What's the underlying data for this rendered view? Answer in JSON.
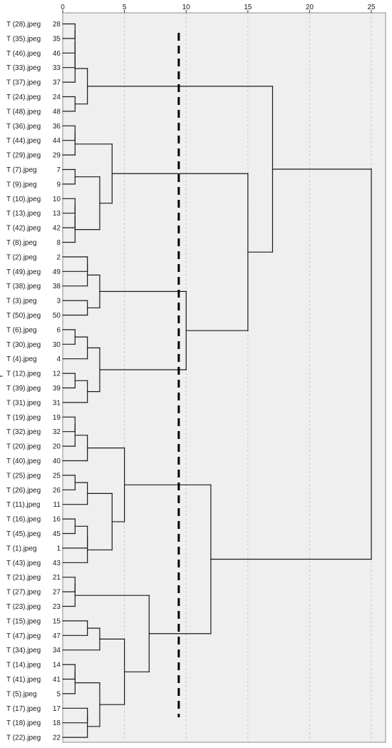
{
  "chart_data": {
    "type": "dendrogram",
    "orientation": "horizontal",
    "xlabel": "",
    "ylabel": "Y",
    "x_ticks": [
      0,
      5,
      10,
      15,
      20,
      25
    ],
    "xlim": [
      0,
      25
    ],
    "grid": "vertical dashed",
    "cut_line_x": 9.4,
    "colors": {
      "plot_background": "#efefef",
      "grid": "#c8c8c8",
      "lines": "#1a1a1a",
      "cut_line": "#000000"
    },
    "leaves": [
      {
        "case": "T (28).jpeg",
        "id": "28"
      },
      {
        "case": "T (35).jpeg",
        "id": "35"
      },
      {
        "case": "T (46).jpeg",
        "id": "46"
      },
      {
        "case": "T (33).jpeg",
        "id": "33"
      },
      {
        "case": "T (37).jpeg",
        "id": "37"
      },
      {
        "case": "T (24).jpeg",
        "id": "24"
      },
      {
        "case": "T (48).jpeg",
        "id": "48"
      },
      {
        "case": "T (36).jpeg",
        "id": "36"
      },
      {
        "case": "T (44).jpeg",
        "id": "44"
      },
      {
        "case": "T (29).jpeg",
        "id": "29"
      },
      {
        "case": "T (7).jpeg",
        "id": "7"
      },
      {
        "case": "T (9).jpeg",
        "id": "9"
      },
      {
        "case": "T (10).jpeg",
        "id": "10"
      },
      {
        "case": "T (13).jpeg",
        "id": "13"
      },
      {
        "case": "T (42).jpeg",
        "id": "42"
      },
      {
        "case": "T (8).jpeg",
        "id": "8"
      },
      {
        "case": "T (2).jpeg",
        "id": "2"
      },
      {
        "case": "T (49).jpeg",
        "id": "49"
      },
      {
        "case": "T (38).jpeg",
        "id": "38"
      },
      {
        "case": "T (3).jpeg",
        "id": "3"
      },
      {
        "case": "T (50).jpeg",
        "id": "50"
      },
      {
        "case": "T (6).jpeg",
        "id": "6"
      },
      {
        "case": "T (30).jpeg",
        "id": "30"
      },
      {
        "case": "T (4).jpeg",
        "id": "4"
      },
      {
        "case": "T (12).jpeg",
        "id": "12"
      },
      {
        "case": "T (39).jpeg",
        "id": "39"
      },
      {
        "case": "T (31).jpeg",
        "id": "31"
      },
      {
        "case": "T (19).jpeg",
        "id": "19"
      },
      {
        "case": "T (32).jpeg",
        "id": "32"
      },
      {
        "case": "T (20).jpeg",
        "id": "20"
      },
      {
        "case": "T (40).jpeg",
        "id": "40"
      },
      {
        "case": "T (25).jpeg",
        "id": "25"
      },
      {
        "case": "T (26).jpeg",
        "id": "26"
      },
      {
        "case": "T (11).jpeg",
        "id": "11"
      },
      {
        "case": "T (16).jpeg",
        "id": "16"
      },
      {
        "case": "T (45).jpeg",
        "id": "45"
      },
      {
        "case": "T (1).jpeg",
        "id": "1"
      },
      {
        "case": "T (43).jpeg",
        "id": "43"
      },
      {
        "case": "T (21).jpeg",
        "id": "21"
      },
      {
        "case": "T (27).jpeg",
        "id": "27"
      },
      {
        "case": "T (23).jpeg",
        "id": "23"
      },
      {
        "case": "T (15).jpeg",
        "id": "15"
      },
      {
        "case": "T (47).jpeg",
        "id": "47"
      },
      {
        "case": "T (34).jpeg",
        "id": "34"
      },
      {
        "case": "T (14).jpeg",
        "id": "14"
      },
      {
        "case": "T (41).jpeg",
        "id": "41"
      },
      {
        "case": "T (5).jpeg",
        "id": "5"
      },
      {
        "case": "T (17).jpeg",
        "id": "17"
      },
      {
        "case": "T (18).jpeg",
        "id": "18"
      },
      {
        "case": "T (22).jpeg",
        "id": "22"
      }
    ],
    "merges": [
      {
        "a": "L0",
        "b": "L1",
        "d": 1.0
      },
      {
        "a": "M0",
        "b": "L2",
        "d": 1.0
      },
      {
        "a": "M1",
        "b": "L3",
        "d": 1.0
      },
      {
        "a": "M2",
        "b": "L4",
        "d": 1.0
      },
      {
        "a": "L5",
        "b": "L6",
        "d": 1.0
      },
      {
        "a": "M3",
        "b": "M4",
        "d": 2.0
      },
      {
        "a": "L7",
        "b": "L8",
        "d": 1.0
      },
      {
        "a": "M6",
        "b": "L9",
        "d": 1.0
      },
      {
        "a": "L10",
        "b": "L11",
        "d": 1.0
      },
      {
        "a": "L12",
        "b": "L13",
        "d": 1.0
      },
      {
        "a": "M9",
        "b": "L14",
        "d": 1.0
      },
      {
        "a": "M10",
        "b": "L15",
        "d": 1.0
      },
      {
        "a": "M8",
        "b": "M11",
        "d": 3.0
      },
      {
        "a": "M7",
        "b": "M12",
        "d": 4.0
      },
      {
        "a": "L16",
        "b": "L17",
        "d": 2.0
      },
      {
        "a": "M14",
        "b": "L18",
        "d": 2.0
      },
      {
        "a": "L19",
        "b": "L20",
        "d": 2.0
      },
      {
        "a": "M15",
        "b": "M16",
        "d": 3.0
      },
      {
        "a": "L21",
        "b": "L22",
        "d": 1.0
      },
      {
        "a": "M18",
        "b": "L23",
        "d": 2.0
      },
      {
        "a": "L24",
        "b": "L25",
        "d": 1.0
      },
      {
        "a": "M20",
        "b": "L26",
        "d": 2.0
      },
      {
        "a": "M19",
        "b": "M21",
        "d": 3.0
      },
      {
        "a": "M17",
        "b": "M22",
        "d": 10.0
      },
      {
        "a": "M13",
        "b": "M23",
        "d": 15.0
      },
      {
        "a": "M5",
        "b": "M24",
        "d": 17.0
      },
      {
        "a": "L27",
        "b": "L28",
        "d": 1.0
      },
      {
        "a": "M26",
        "b": "L29",
        "d": 1.0
      },
      {
        "a": "M27",
        "b": "L30",
        "d": 2.0
      },
      {
        "a": "L31",
        "b": "L32",
        "d": 1.0
      },
      {
        "a": "M29",
        "b": "L33",
        "d": 2.0
      },
      {
        "a": "L34",
        "b": "L35",
        "d": 1.0
      },
      {
        "a": "M31",
        "b": "L36",
        "d": 2.0
      },
      {
        "a": "M32",
        "b": "L37",
        "d": 2.0
      },
      {
        "a": "M30",
        "b": "M33",
        "d": 4.0
      },
      {
        "a": "M28",
        "b": "M34",
        "d": 5.0
      },
      {
        "a": "L38",
        "b": "L39",
        "d": 1.0
      },
      {
        "a": "M36",
        "b": "L40",
        "d": 1.0
      },
      {
        "a": "L41",
        "b": "L42",
        "d": 2.0
      },
      {
        "a": "M38",
        "b": "L43",
        "d": 3.0
      },
      {
        "a": "L44",
        "b": "L45",
        "d": 1.0
      },
      {
        "a": "M40",
        "b": "L46",
        "d": 1.0
      },
      {
        "a": "L47",
        "b": "L48",
        "d": 2.0
      },
      {
        "a": "M42",
        "b": "L49",
        "d": 2.0
      },
      {
        "a": "M41",
        "b": "M43",
        "d": 3.0
      },
      {
        "a": "M39",
        "b": "M44",
        "d": 5.0
      },
      {
        "a": "M37",
        "b": "M45",
        "d": 7.0
      },
      {
        "a": "M35",
        "b": "M46",
        "d": 12.0
      },
      {
        "a": "M25",
        "b": "M47",
        "d": 25.0
      }
    ]
  }
}
